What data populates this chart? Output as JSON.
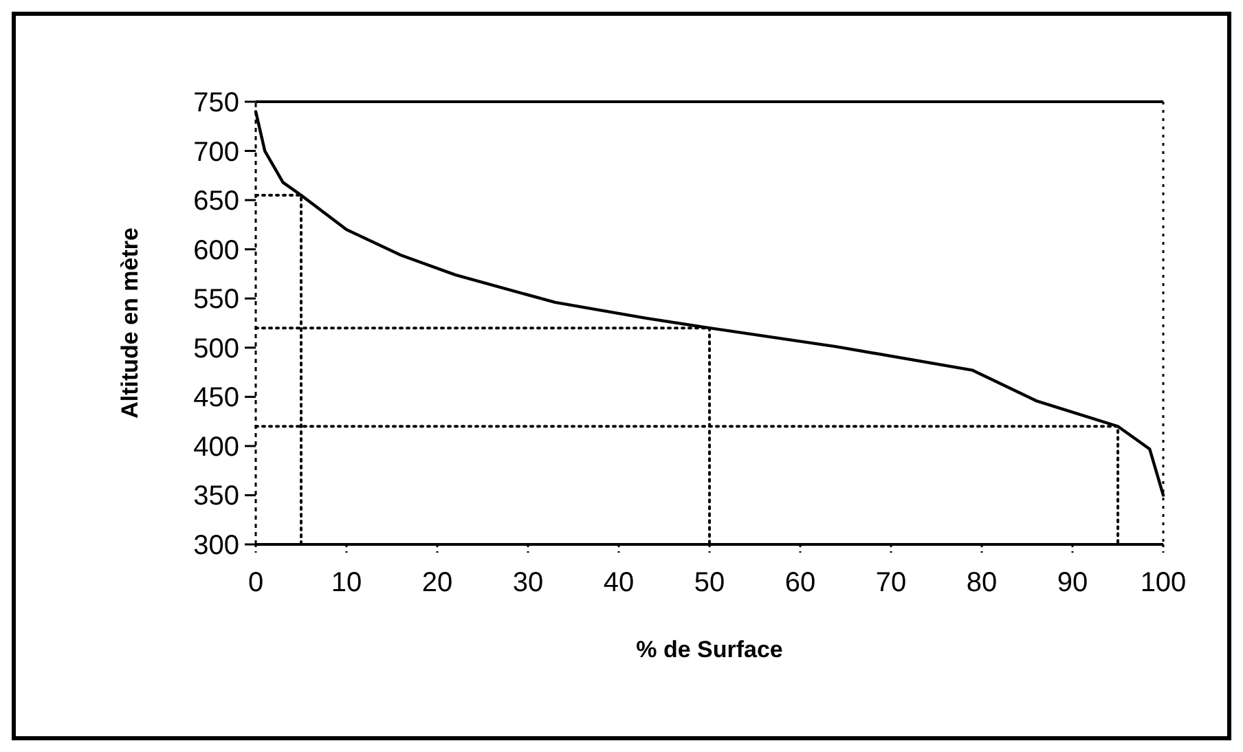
{
  "chart_data": {
    "type": "line",
    "xlabel": "% de Surface",
    "ylabel": "Altitude en mètre",
    "x": [
      0,
      1,
      3,
      5,
      10,
      16,
      22,
      33,
      43,
      50,
      64,
      79,
      86,
      95,
      98.5,
      100
    ],
    "series": [
      {
        "color": "#000000",
        "values": [
          740,
          700,
          668,
          655,
          620,
          594,
          574,
          546,
          530,
          520,
          501,
          477,
          446,
          420,
          397,
          350
        ]
      },
      {
        "color": "#000000",
        "line_style": "dotted",
        "x": [
          0,
          5,
          5
        ],
        "values": [
          655,
          655,
          300
        ]
      },
      {
        "color": "#000000",
        "line_style": "dotted",
        "x": [
          0,
          50,
          50
        ],
        "values": [
          520,
          520,
          300
        ]
      },
      {
        "color": "#000000",
        "line_style": "dotted",
        "x": [
          0,
          95,
          95
        ],
        "values": [
          420,
          420,
          300
        ]
      }
    ],
    "xlim": [
      0,
      100
    ],
    "xticks": [
      0,
      10,
      20,
      30,
      40,
      50,
      60,
      70,
      80,
      90,
      100
    ],
    "ylim": [
      300,
      750
    ],
    "yticks": [
      300,
      350,
      400,
      450,
      500,
      550,
      600,
      650,
      700,
      750
    ],
    "grid": false,
    "marker": "none",
    "line_style": "solid"
  }
}
